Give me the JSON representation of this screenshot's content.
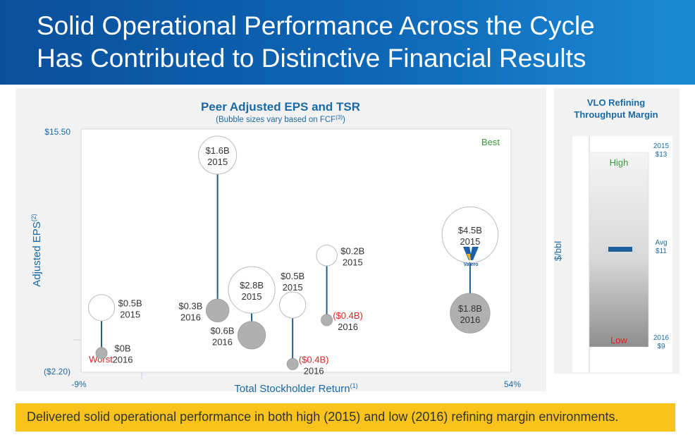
{
  "header": {
    "title_line1": "Solid Operational Performance Across the Cycle",
    "title_line2": "Has Contributed to Distinctive Financial Results"
  },
  "left_chart": {
    "title": "Peer Adjusted EPS and TSR",
    "subtitle_main": "(Bubble sizes vary based on FCF",
    "subtitle_sup": "(3)",
    "subtitle_end": ")",
    "ylabel": "Adjusted EPS",
    "ylabel_sup": "(2)",
    "xlabel": "Total Stockholder Return",
    "xlabel_sup": "(1)",
    "y_top_label": "$15.50",
    "y_bottom_label": "($2.20)",
    "x_left_label": "-9%",
    "x_right_label": "54%",
    "best_label": "Best",
    "worst_label": "Worst",
    "logo_text": "Valero",
    "colors": {
      "accent": "#1a6aa6",
      "stem": "#1a5f8a",
      "best": "#3a9a3a",
      "worst": "#e02020",
      "filled": "#b0b0b0"
    }
  },
  "chart_data": [
    {
      "type": "scatter",
      "title": "Peer Adjusted EPS and TSR",
      "xlabel": "Total Stockholder Return",
      "ylabel": "Adjusted EPS",
      "x_range_labels": [
        "-9%",
        "54%"
      ],
      "y_range_labels": [
        "($2.20)",
        "$15.50"
      ],
      "series": [
        {
          "name": "2015",
          "points": [
            {
              "x": -6,
              "y": 2.5,
              "fcf": "$0.5B"
            },
            {
              "x": 11,
              "y": 13.6,
              "fcf": "$1.6B"
            },
            {
              "x": 16,
              "y": 3.8,
              "fcf": "$2.8B"
            },
            {
              "x": 22,
              "y": 2.7,
              "fcf": "$0.5B"
            },
            {
              "x": 27,
              "y": 6.3,
              "fcf": "$0.2B"
            },
            {
              "x": 48,
              "y": 7.8,
              "fcf": "$4.5B"
            }
          ]
        },
        {
          "name": "2016",
          "points": [
            {
              "x": -6,
              "y": -0.8,
              "fcf": "$0B"
            },
            {
              "x": 11,
              "y": 2.3,
              "fcf": "$0.3B"
            },
            {
              "x": 16,
              "y": 0.5,
              "fcf": "$0.6B"
            },
            {
              "x": 22,
              "y": -1.6,
              "fcf": "($0.4B)"
            },
            {
              "x": 27,
              "y": 1.6,
              "fcf": "($0.4B)"
            },
            {
              "x": 48,
              "y": 2.1,
              "fcf": "$1.8B"
            }
          ]
        }
      ]
    },
    {
      "type": "bar",
      "title": "VLO Refining Throughput Margin",
      "ylabel": "$/bbl",
      "high_label": "High",
      "low_label": "Low",
      "values": [
        {
          "year": "2015",
          "value": 13,
          "label": "$13"
        },
        {
          "label_top": "Avg",
          "value": 11,
          "label": "$11"
        },
        {
          "year": "2016",
          "value": 9,
          "label": "$9"
        }
      ]
    }
  ],
  "right_chart": {
    "title_line1": "VLO Refining",
    "title_line2": "Throughput Margin",
    "ylabel": "$/bbl",
    "high": "High",
    "low": "Low",
    "top_year": "2015",
    "top_value": "$13",
    "avg_label": "Avg",
    "avg_value": "$11",
    "bottom_year": "2016",
    "bottom_value": "$9"
  },
  "footer": {
    "message": "Delivered solid operational performance in both high (2015) and low (2016) refining margin environments."
  }
}
